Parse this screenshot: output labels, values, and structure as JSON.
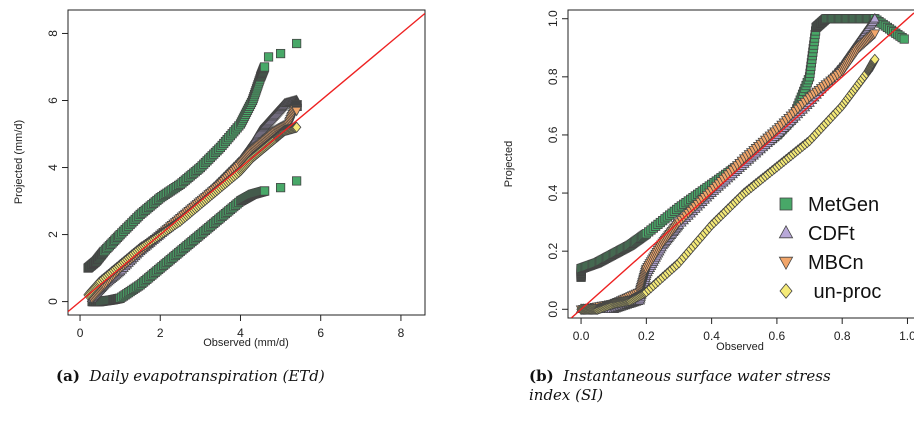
{
  "colors": {
    "MetGen": "#48a868",
    "CDFt": "#b8a8d8",
    "MBCn": "#f2a66a",
    "un-proc": "#f5ea78",
    "identity_line": "#ee2222"
  },
  "captions": {
    "a": {
      "tag": "(a)",
      "text": "Daily evapotranspiration (ETd)"
    },
    "b": {
      "tag": "(b)",
      "text_line1": "Instantaneous surface water stress",
      "text_line2": "index (SI)"
    }
  },
  "chart_data": [
    {
      "type": "scatter",
      "panel": "a",
      "xlabel": "Observed (mm/d)",
      "ylabel": "Projected (mm/d)",
      "xlim": [
        -0.3,
        8.6
      ],
      "ylim": [
        -0.4,
        8.7
      ],
      "xticks": [
        0,
        2,
        4,
        6,
        8
      ],
      "yticks": [
        0,
        2,
        4,
        6,
        8
      ],
      "reference_line": "y = x",
      "grid": false,
      "legend": null,
      "series": [
        {
          "name": "MetGen",
          "marker": "square",
          "upper_x": [
            0.2,
            0.4,
            0.6,
            1.0,
            1.5,
            2.0,
            2.5,
            3.0,
            3.5,
            4.0,
            4.3,
            4.5,
            4.6
          ],
          "upper_y": [
            1.0,
            1.2,
            1.5,
            2.0,
            2.6,
            3.1,
            3.5,
            4.0,
            4.6,
            5.3,
            6.0,
            6.7,
            7.0
          ],
          "lower_x": [
            0.3,
            0.5,
            0.8,
            1.0,
            1.5,
            2.0,
            2.5,
            3.0,
            3.5,
            4.0,
            4.3,
            4.6
          ],
          "lower_y": [
            0.0,
            0.0,
            0.05,
            0.1,
            0.5,
            1.0,
            1.5,
            2.0,
            2.5,
            3.0,
            3.2,
            3.3
          ],
          "tail_x": [
            4.7,
            5.0,
            5.4,
            4.6,
            5.0,
            5.4
          ],
          "tail_y": [
            7.3,
            7.4,
            7.7,
            3.3,
            3.4,
            3.6
          ]
        },
        {
          "name": "CDFt",
          "marker": "triangle-up",
          "x": [
            0.3,
            0.6,
            1.0,
            1.5,
            2.0,
            2.5,
            3.0,
            3.5,
            4.0,
            4.3,
            4.5,
            4.8,
            5.1,
            5.4,
            5.4
          ],
          "y": [
            0.1,
            0.5,
            0.9,
            1.5,
            2.0,
            2.5,
            3.0,
            3.6,
            4.2,
            4.7,
            5.1,
            5.5,
            5.9,
            6.0,
            5.8
          ]
        },
        {
          "name": "MBCn",
          "marker": "triangle-down",
          "x": [
            0.3,
            0.6,
            1.0,
            1.5,
            2.0,
            2.5,
            3.0,
            3.5,
            4.0,
            4.3,
            4.6,
            4.9,
            5.2,
            5.4,
            5.4
          ],
          "y": [
            0.1,
            0.5,
            1.0,
            1.5,
            2.0,
            2.5,
            3.0,
            3.5,
            4.1,
            4.5,
            4.8,
            5.1,
            5.3,
            5.9,
            5.7
          ]
        },
        {
          "name": "un-proc",
          "marker": "diamond",
          "x": [
            0.2,
            0.5,
            1.0,
            1.5,
            2.0,
            2.5,
            3.0,
            3.5,
            4.0,
            4.3,
            4.6,
            4.9,
            5.1,
            5.4
          ],
          "y": [
            0.2,
            0.6,
            1.1,
            1.6,
            2.0,
            2.4,
            2.9,
            3.4,
            3.9,
            4.3,
            4.6,
            4.9,
            5.1,
            5.2
          ]
        }
      ]
    },
    {
      "type": "scatter",
      "panel": "b",
      "xlabel": "Observed",
      "ylabel": "Projected",
      "xlim": [
        -0.04,
        1.02
      ],
      "ylim": [
        -0.03,
        1.03
      ],
      "xticks": [
        "0.0",
        "0.2",
        "0.4",
        "0.6",
        "0.8",
        "1.0"
      ],
      "yticks": [
        "0.0",
        "0.2",
        "0.4",
        "0.6",
        "0.8",
        "1.0"
      ],
      "reference_line": "y = x",
      "grid": false,
      "legend_position": "right",
      "series": [
        {
          "name": "MetGen",
          "marker": "square",
          "x": [
            0.0,
            0.0,
            0.05,
            0.1,
            0.15,
            0.2,
            0.3,
            0.4,
            0.5,
            0.6,
            0.65,
            0.7,
            0.72,
            0.75,
            0.8,
            0.85,
            0.9,
            0.99
          ],
          "y": [
            0.11,
            0.14,
            0.16,
            0.19,
            0.22,
            0.26,
            0.35,
            0.43,
            0.51,
            0.6,
            0.66,
            0.8,
            0.97,
            1.0,
            1.0,
            1.0,
            1.0,
            0.93
          ]
        },
        {
          "name": "CDFt",
          "marker": "triangle-up",
          "x": [
            0.0,
            0.1,
            0.18,
            0.2,
            0.25,
            0.3,
            0.4,
            0.5,
            0.6,
            0.7,
            0.8,
            0.85,
            0.9
          ],
          "y": [
            0.0,
            0.0,
            0.03,
            0.12,
            0.22,
            0.29,
            0.4,
            0.5,
            0.6,
            0.71,
            0.84,
            0.92,
            1.0
          ]
        },
        {
          "name": "MBCn",
          "marker": "triangle-down",
          "x": [
            0.0,
            0.1,
            0.18,
            0.2,
            0.25,
            0.3,
            0.4,
            0.5,
            0.6,
            0.7,
            0.8,
            0.85,
            0.9
          ],
          "y": [
            0.0,
            0.02,
            0.06,
            0.14,
            0.23,
            0.3,
            0.41,
            0.52,
            0.62,
            0.73,
            0.82,
            0.9,
            0.95
          ]
        },
        {
          "name": "un-proc",
          "marker": "diamond",
          "x": [
            0.0,
            0.05,
            0.1,
            0.15,
            0.2,
            0.3,
            0.4,
            0.5,
            0.6,
            0.7,
            0.8,
            0.88,
            0.9
          ],
          "y": [
            0.0,
            0.0,
            0.02,
            0.03,
            0.06,
            0.16,
            0.29,
            0.4,
            0.49,
            0.58,
            0.7,
            0.82,
            0.86
          ]
        }
      ]
    }
  ]
}
